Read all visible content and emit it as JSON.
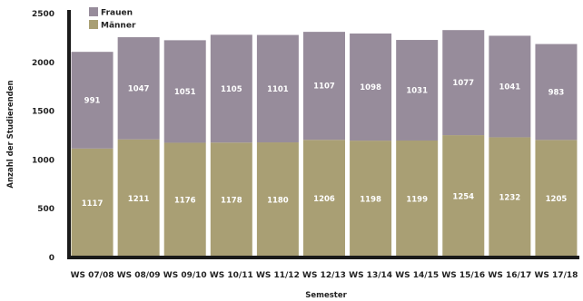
{
  "chart_data": {
    "type": "bar",
    "stacked": true,
    "xlabel": "Semester",
    "ylabel": "Anzahl der Studierenden",
    "ylim": [
      0,
      2500
    ],
    "yticks": [
      0,
      500,
      1000,
      1500,
      2000,
      2500
    ],
    "grid": false,
    "legend_position": "top-left",
    "categories": [
      "WS 07/08",
      "WS 08/09",
      "WS 09/10",
      "WS 10/11",
      "WS 11/12",
      "WS 12/13",
      "WS 13/14",
      "WS 14/15",
      "WS 15/16",
      "WS 16/17",
      "WS 17/18"
    ],
    "series": [
      {
        "name": "Männer",
        "color": "#a99f74",
        "values": [
          1117,
          1211,
          1176,
          1178,
          1180,
          1206,
          1198,
          1199,
          1254,
          1232,
          1205
        ]
      },
      {
        "name": "Frauen",
        "color": "#978c9b",
        "values": [
          991,
          1047,
          1051,
          1105,
          1101,
          1107,
          1098,
          1031,
          1077,
          1041,
          983
        ]
      }
    ]
  },
  "colors": {
    "axis": "#1a1a1a",
    "bar_label": "#ffffff",
    "text": "#222222"
  }
}
